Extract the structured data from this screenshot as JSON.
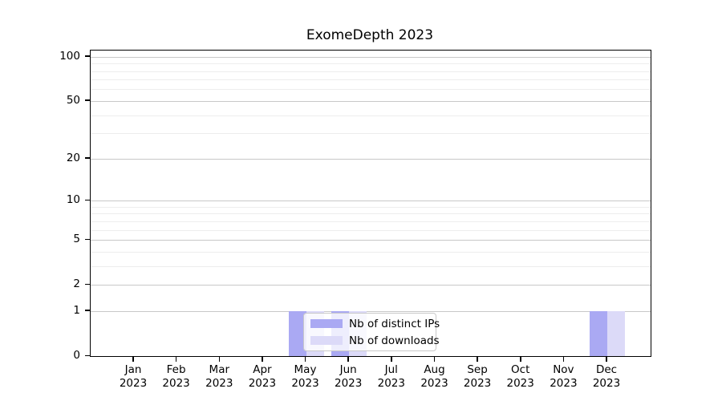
{
  "chart_data": {
    "type": "bar",
    "title": "ExomeDepth 2023",
    "x": {
      "months": [
        "Jan",
        "Feb",
        "Mar",
        "Apr",
        "May",
        "Jun",
        "Jul",
        "Aug",
        "Sep",
        "Oct",
        "Nov",
        "Dec"
      ],
      "year": "2023"
    },
    "series": [
      {
        "name": "Nb of distinct IPs",
        "color": "#aaa9f3",
        "values": [
          0,
          0,
          0,
          0,
          1,
          1,
          0,
          0,
          0,
          0,
          0,
          1
        ]
      },
      {
        "name": "Nb of downloads",
        "color": "#dcdaf8",
        "values": [
          0,
          0,
          0,
          0,
          1,
          1,
          0,
          0,
          0,
          0,
          0,
          1
        ]
      }
    ],
    "y_axis": {
      "scale": "log1p",
      "tick_labels": [
        "100",
        "50",
        "20",
        "10",
        "5",
        "2",
        "1",
        "0"
      ],
      "ticks": [
        100,
        50,
        20,
        10,
        5,
        2,
        1,
        0
      ],
      "minor_gridlines": [
        3,
        4,
        6,
        7,
        8,
        9,
        30,
        40,
        60,
        70,
        80,
        90
      ],
      "top_value": 110
    },
    "grid": "horizontal",
    "legend": {
      "entries": [
        "Nb of distinct IPs",
        "Nb of downloads"
      ],
      "position": "lower center"
    },
    "colors": {
      "grid_major": "#c8c8c8",
      "grid_minor": "#ededed",
      "axis": "#000000",
      "text": "#000000",
      "legend_border": "#c9c9c9"
    }
  }
}
